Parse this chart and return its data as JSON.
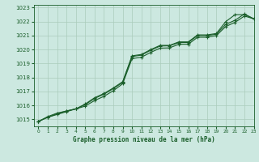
{
  "title": "Graphe pression niveau de la mer (hPa)",
  "bg_color": "#cce8e0",
  "grid_color": "#aaccbb",
  "line_color": "#1a5e2a",
  "xlim": [
    -0.5,
    23
  ],
  "ylim": [
    1014.5,
    1023.2
  ],
  "yticks": [
    1015,
    1016,
    1017,
    1018,
    1019,
    1020,
    1021,
    1022,
    1023
  ],
  "xticks": [
    0,
    1,
    2,
    3,
    4,
    5,
    6,
    7,
    8,
    9,
    10,
    11,
    12,
    13,
    14,
    15,
    16,
    17,
    18,
    19,
    20,
    21,
    22,
    23
  ],
  "series1_x": [
    0,
    1,
    2,
    3,
    4,
    5,
    6,
    7,
    8,
    9,
    10,
    11,
    12,
    13,
    14,
    15,
    16,
    17,
    18,
    19,
    20,
    21,
    22,
    23
  ],
  "series1_y": [
    1014.85,
    1015.2,
    1015.45,
    1015.6,
    1015.75,
    1016.1,
    1016.55,
    1016.85,
    1017.25,
    1017.7,
    1019.55,
    1019.65,
    1020.0,
    1020.3,
    1020.3,
    1020.55,
    1020.55,
    1021.05,
    1021.05,
    1021.15,
    1022.0,
    1022.5,
    1022.5,
    1022.2
  ],
  "series2_x": [
    0,
    1,
    2,
    3,
    4,
    5,
    6,
    7,
    8,
    9,
    10,
    11,
    12,
    13,
    14,
    15,
    16,
    17,
    18,
    19,
    20,
    21,
    22,
    23
  ],
  "series2_y": [
    1014.85,
    1015.15,
    1015.4,
    1015.6,
    1015.75,
    1016.05,
    1016.5,
    1016.8,
    1017.2,
    1017.65,
    1019.5,
    1019.6,
    1019.95,
    1020.25,
    1020.27,
    1020.5,
    1020.5,
    1021.0,
    1021.0,
    1021.1,
    1021.8,
    1022.1,
    1022.55,
    1022.2
  ],
  "series3_x": [
    0,
    1,
    2,
    3,
    4,
    5,
    6,
    7,
    8,
    9,
    10,
    11,
    12,
    13,
    14,
    15,
    16,
    17,
    18,
    19,
    20,
    21,
    22,
    23
  ],
  "series3_y": [
    1014.85,
    1015.15,
    1015.35,
    1015.55,
    1015.75,
    1015.95,
    1016.35,
    1016.65,
    1017.05,
    1017.55,
    1019.35,
    1019.45,
    1019.8,
    1020.1,
    1020.12,
    1020.38,
    1020.38,
    1020.88,
    1020.88,
    1021.0,
    1021.65,
    1021.95,
    1022.4,
    1022.2
  ]
}
